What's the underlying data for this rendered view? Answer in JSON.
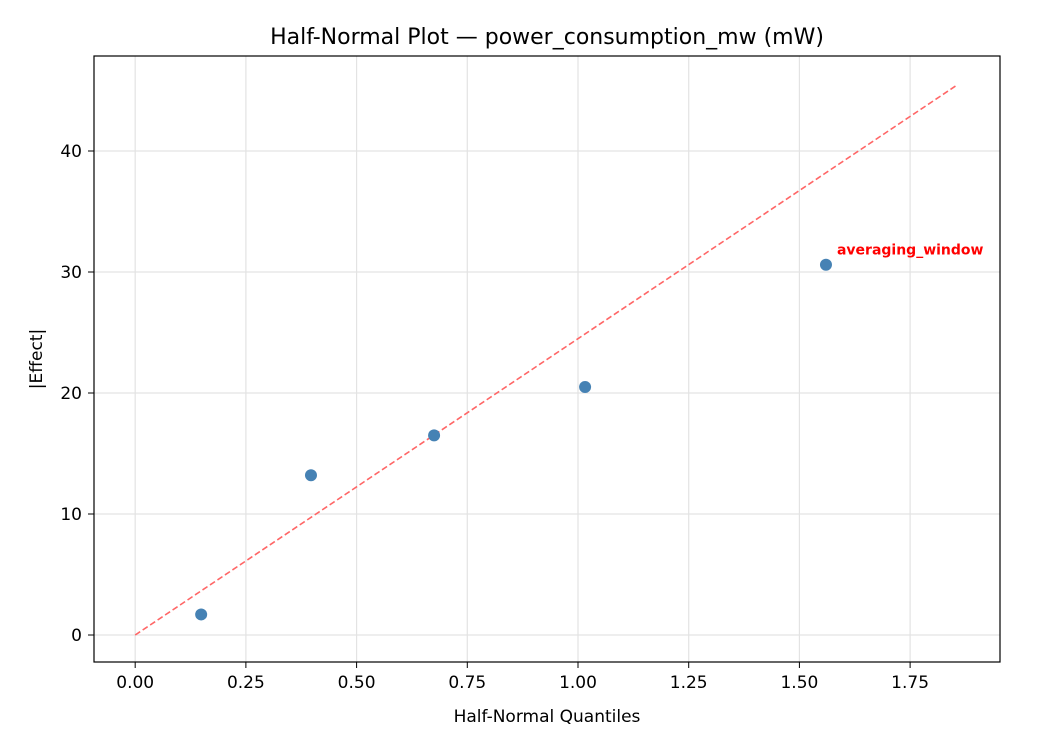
{
  "chart_data": {
    "type": "scatter",
    "title": "Half-Normal Plot — power_consumption_mw (mW)",
    "xlabel": "Half-Normal Quantiles",
    "ylabel": "|Effect|",
    "xlim": [
      -0.093,
      1.953
    ],
    "ylim": [
      -2.23,
      47.85
    ],
    "xticks": [
      0.0,
      0.25,
      0.5,
      0.75,
      1.0,
      1.25,
      1.5,
      1.75
    ],
    "xtick_labels": [
      "0.00",
      "0.25",
      "0.50",
      "0.75",
      "1.00",
      "1.25",
      "1.50",
      "1.75"
    ],
    "yticks": [
      0,
      10,
      20,
      30,
      40
    ],
    "ytick_labels": [
      "0",
      "10",
      "20",
      "30",
      "40"
    ],
    "grid": true,
    "points": [
      {
        "x": 0.149,
        "y": 1.7
      },
      {
        "x": 0.397,
        "y": 13.2
      },
      {
        "x": 0.675,
        "y": 16.5
      },
      {
        "x": 1.016,
        "y": 20.5
      },
      {
        "x": 1.56,
        "y": 30.6,
        "label": "averaging_window"
      }
    ],
    "reference_line": {
      "x": [
        0,
        1.858
      ],
      "y": [
        0,
        45.5
      ],
      "style": "dashed"
    },
    "colors": {
      "points": "#4682b4",
      "reference_line": "#ff6666",
      "annotation": "#ff0000"
    }
  }
}
